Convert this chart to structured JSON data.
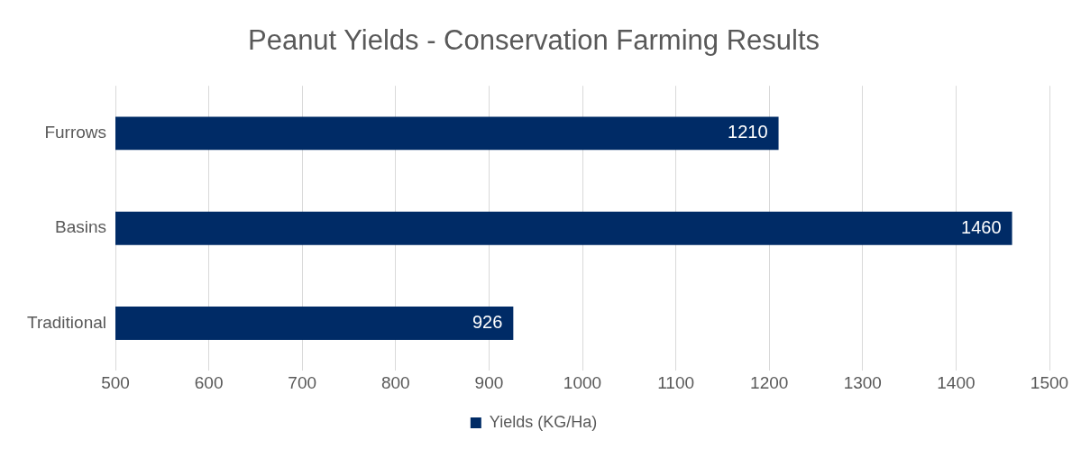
{
  "chart_data": {
    "type": "bar",
    "orientation": "horizontal",
    "title": "Peanut Yields - Conservation Farming Results",
    "categories": [
      "Furrows",
      "Basins",
      "Traditional"
    ],
    "series": [
      {
        "name": "Yields (KG/Ha)",
        "color": "#002b66",
        "values": [
          1210,
          1460,
          926
        ]
      }
    ],
    "xlim": [
      500,
      1500
    ],
    "xticks": [
      500,
      600,
      700,
      800,
      900,
      1000,
      1100,
      1200,
      1300,
      1400,
      1500
    ],
    "grid": "x",
    "legend": "bottom",
    "data_labels": true
  }
}
